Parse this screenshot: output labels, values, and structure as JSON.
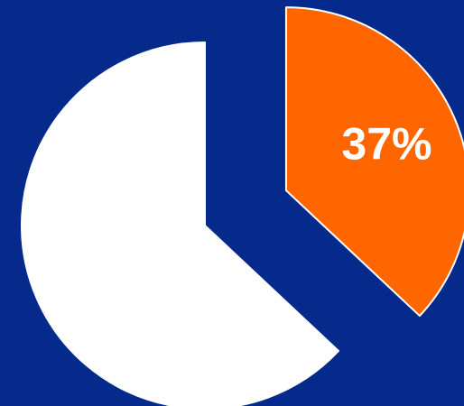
{
  "colors": {
    "background": "#052a8c",
    "highlight_slice": "#ff6600",
    "remainder_slice": "#ffffff",
    "slice_outline": "#ffffff",
    "label_text": "#ffffff"
  },
  "chart_data": {
    "type": "pie",
    "exploded_slice_index": 0,
    "slices": [
      {
        "value": 37,
        "color": "#ff6600",
        "data_label": "37%"
      },
      {
        "value": 63,
        "color": "#ffffff",
        "data_label": ""
      }
    ]
  }
}
